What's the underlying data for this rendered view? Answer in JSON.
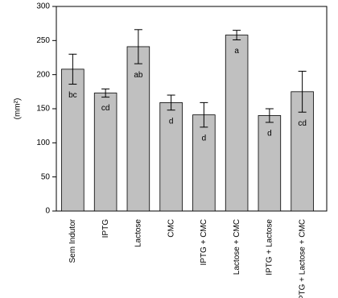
{
  "chart_data": {
    "type": "bar",
    "y_label": "(mm²)",
    "categories": [
      "Sem Indutor",
      "IPTG",
      "Lactose",
      "CMC",
      "IPTG + CMC",
      "Lactose + CMC",
      "IPTG + Lactose",
      "IPTG + Lactose + CMC"
    ],
    "values": [
      208,
      173,
      241,
      159,
      141,
      258,
      140,
      175
    ],
    "errors": [
      22,
      6,
      25,
      11,
      18,
      7,
      10,
      30
    ],
    "letters": [
      "bc",
      "cd",
      "ab",
      "d",
      "d",
      "a",
      "d",
      "cd"
    ],
    "color": "#c0c0c0",
    "ylim": [
      0,
      300
    ],
    "yticks": [
      0,
      50,
      100,
      150,
      200,
      250,
      300
    ]
  }
}
